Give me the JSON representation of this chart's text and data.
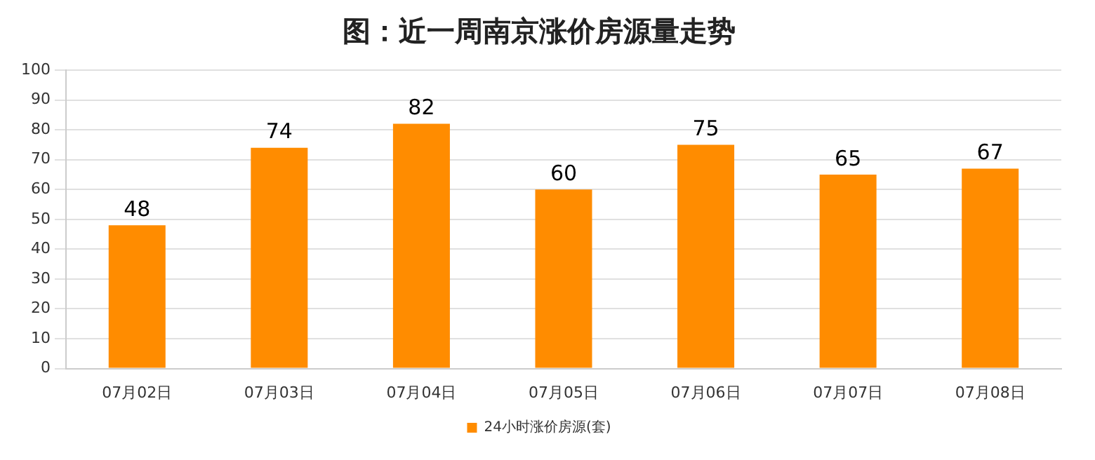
{
  "chart_data": {
    "type": "bar",
    "title": "图：近一周南京涨价房源量走势",
    "categories": [
      "07月02日",
      "07月03日",
      "07月04日",
      "07月05日",
      "07月06日",
      "07月07日",
      "07月08日"
    ],
    "series": [
      {
        "name": "24小时涨价房源(套)",
        "color": "#ff8c00",
        "values": [
          48,
          74,
          82,
          60,
          75,
          65,
          67
        ]
      }
    ],
    "ylim": [
      0,
      100
    ],
    "yticks": [
      0,
      10,
      20,
      30,
      40,
      50,
      60,
      70,
      80,
      90,
      100
    ],
    "grid": "y",
    "legend": "bottom",
    "data_labels": true
  }
}
